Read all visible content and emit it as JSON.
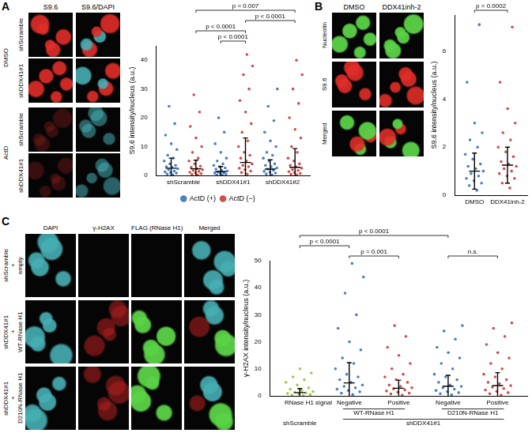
{
  "panels": [
    {
      "letter": "A",
      "column_labels": [
        "S9.6",
        "S9.6/DAPI"
      ],
      "row_groups": [
        {
          "label": "DMSO",
          "rows": [
            "shScramble",
            "shDDX41#1"
          ]
        },
        {
          "label": "ActD",
          "rows": [
            "shScramble",
            "shDDX41#1"
          ]
        }
      ]
    },
    {
      "letter": "B",
      "column_labels": [
        "DMSO",
        "DDX41inh-2"
      ],
      "row_labels": [
        "Nucleolin",
        "S9.6",
        "Merged"
      ]
    },
    {
      "letter": "C",
      "column_labels": [
        "DAPI",
        "γ-H2AX",
        "FLAG (RNase H1)",
        "Merged"
      ],
      "row_labels": [
        [
          "shScramble",
          "+",
          "empty"
        ],
        [
          "shDDX41#1",
          "+",
          "WT-RNase H1"
        ],
        [
          "shDDX41#1",
          "+",
          "D210N-RNase H1"
        ]
      ]
    }
  ],
  "chart_data": [
    {
      "type": "scatter",
      "y_label": "S9.6 intensity/nucleus (a.u.)",
      "categories": [
        "shScramble",
        "shDDX41#1",
        "shDDX41#2"
      ],
      "series": [
        {
          "name": "ActD (+)",
          "color": "#4a7fc1",
          "values": [
            [
              0.2,
              0.5,
              0.8,
              1,
              1.2,
              1.5,
              2,
              2.3,
              2.8,
              3,
              3.5,
              4,
              5,
              6,
              7,
              9,
              11,
              14,
              18,
              24
            ],
            [
              0.1,
              0.2,
              0.4,
              0.6,
              0.8,
              1,
              1.2,
              1.5,
              1.8,
              2.2,
              2.6,
              3,
              3.5,
              4,
              5,
              6,
              8,
              11,
              15,
              20
            ],
            [
              0.2,
              0.5,
              0.8,
              1.1,
              1.4,
              1.8,
              2.2,
              2.6,
              3,
              3.5,
              4,
              5,
              6,
              7,
              8,
              10,
              12,
              15,
              19,
              24,
              30
            ]
          ],
          "mean": [
            2.5,
            1.3,
            2.2
          ],
          "sd": [
            3.5,
            1.8,
            3.2
          ]
        },
        {
          "name": "ActD (−)",
          "color": "#cd4f4a",
          "values": [
            [
              0.1,
              0.3,
              0.6,
              0.9,
              1.1,
              1.4,
              1.7,
              2,
              2.4,
              2.8,
              3.2,
              4,
              5,
              6,
              8,
              10,
              13,
              17,
              22,
              28
            ],
            [
              0.5,
              1,
              1.5,
              2,
              2.5,
              3,
              3.5,
              4,
              5,
              6,
              7,
              8,
              10,
              12,
              15,
              18,
              22,
              26,
              30,
              35,
              38,
              42
            ],
            [
              0.2,
              0.4,
              0.7,
              1,
              1.3,
              1.7,
              2,
              2.5,
              3,
              3.5,
              4,
              5,
              6,
              8,
              10,
              13,
              16,
              20,
              25,
              30,
              35,
              40
            ]
          ],
          "mean": [
            2.3,
            4.5,
            2.8
          ],
          "sd": [
            3,
            8.5,
            6.5
          ]
        }
      ],
      "ylim": [
        0,
        45
      ],
      "yticks": [
        0,
        10,
        20,
        30,
        40
      ],
      "grid": false,
      "legend": "bottom",
      "annotations": [
        {
          "text": "p = 0.007",
          "from": [
            0,
            1
          ],
          "to": [
            2,
            1
          ]
        },
        {
          "text": "p < 0.0001",
          "from": [
            0,
            1
          ],
          "to": [
            1,
            1
          ]
        },
        {
          "text": "p < 0.0001",
          "from": [
            1,
            0
          ],
          "to": [
            1,
            1
          ]
        },
        {
          "text": "p < 0.0001",
          "from": [
            1,
            1
          ],
          "to": [
            2,
            1
          ]
        }
      ]
    },
    {
      "type": "scatter",
      "y_label": "S9.6 intensity/nucleus (a.u.)",
      "categories": [
        "DMSO",
        "DDX41inh-2"
      ],
      "series": [
        {
          "colors": [
            "#4a7fc1",
            "#cd4f4a"
          ],
          "values": [
            [
              0.2,
              0.4,
              0.5,
              0.6,
              0.7,
              0.8,
              0.9,
              1,
              1.1,
              1.2,
              1.3,
              1.5,
              1.7,
              2,
              2.3,
              2.6,
              3,
              4.7,
              7.1
            ],
            [
              0.3,
              0.5,
              0.7,
              0.8,
              0.9,
              1,
              1.1,
              1.2,
              1.3,
              1.4,
              1.6,
              1.8,
              2,
              2.3,
              2.6,
              3,
              3.6,
              4.7,
              7.0
            ]
          ],
          "mean": [
            1.0,
            1.25
          ],
          "sd": [
            0.75,
            0.75
          ]
        }
      ],
      "ylim": [
        0,
        7.5
      ],
      "yticks": [
        0,
        2,
        4,
        6
      ],
      "grid": false,
      "annotations": [
        {
          "text": "p = 0.0002",
          "from": [
            0,
            0
          ],
          "to": [
            1,
            0
          ]
        }
      ]
    },
    {
      "type": "scatter",
      "y_label": "γ-H2AX intensity/nucleus (a.u.)",
      "x_label": "RNase H1 signal",
      "categories": [
        null,
        "Negative",
        "Positive",
        "Negative",
        "Positive"
      ],
      "category_groups": [
        [
          {
            "label": "WT-RNase H1",
            "from": 1,
            "to": 2
          },
          {
            "label": "D210N-RNase H1",
            "from": 3,
            "to": 4
          }
        ],
        [
          {
            "label": "shScramble",
            "from": 0,
            "to": 0
          },
          {
            "label": "shDDX41#1",
            "from": 1,
            "to": 4
          }
        ]
      ],
      "series": [
        {
          "colors": [
            "#9acd4c",
            "#4a7fc1",
            "#cd4f4a",
            "#4a7fc1",
            "#cd4f4a"
          ],
          "values": [
            [
              0.1,
              0.3,
              0.5,
              0.7,
              0.9,
              1.1,
              1.3,
              1.6,
              2,
              2.5,
              3,
              4,
              5,
              6,
              7,
              8.5,
              10
            ],
            [
              0.5,
              1,
              1.5,
              2,
              2.5,
              3,
              3.5,
              4,
              5,
              6,
              7,
              8,
              10,
              12,
              14,
              17,
              20,
              25,
              30,
              38,
              44,
              49
            ],
            [
              0.3,
              0.7,
              1,
              1.4,
              1.8,
              2.2,
              2.6,
              3,
              3.5,
              4,
              5,
              6,
              7,
              8,
              10,
              12,
              15,
              18,
              22,
              26
            ],
            [
              0.4,
              0.8,
              1.2,
              1.6,
              2,
              2.5,
              3,
              3.5,
              4,
              5,
              6,
              7,
              8,
              10,
              12,
              14,
              16,
              18,
              21,
              24,
              26
            ],
            [
              0.3,
              0.8,
              1.2,
              1.7,
              2.2,
              2.7,
              3.2,
              3.8,
              4.5,
              5,
              6,
              7,
              8,
              10,
              12,
              14,
              16,
              19,
              22,
              25,
              27
            ]
          ],
          "mean": [
            1.2,
            4.8,
            2.8,
            3.6,
            3.8
          ],
          "sd": [
            1.5,
            7.5,
            3,
            4,
            4.8
          ]
        }
      ],
      "ylim": [
        0,
        50
      ],
      "yticks": [
        0,
        10,
        20,
        30,
        40,
        50
      ],
      "grid": false,
      "annotations": [
        {
          "text": "p < 0.0001",
          "from": [
            0,
            0
          ],
          "to": [
            3,
            0
          ]
        },
        {
          "text": "p < 0.0001",
          "from": [
            0,
            0
          ],
          "to": [
            1,
            0
          ]
        },
        {
          "text": "p = 0.001",
          "from": [
            1,
            0
          ],
          "to": [
            2,
            0
          ]
        },
        {
          "text": "n.s.",
          "from": [
            3,
            0
          ],
          "to": [
            4,
            0
          ]
        }
      ]
    }
  ]
}
